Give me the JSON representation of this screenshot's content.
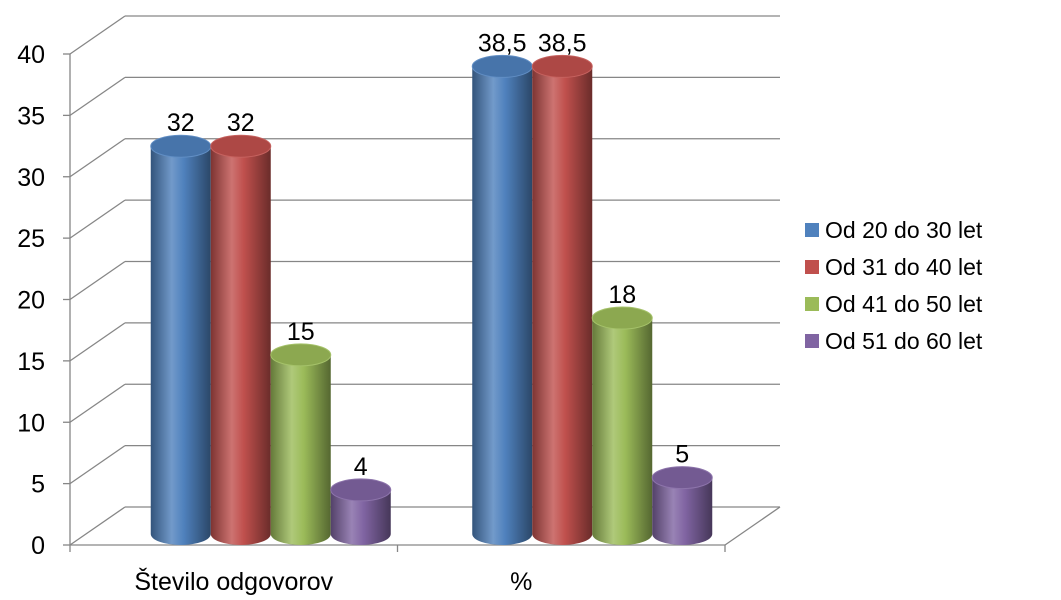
{
  "chart_data": {
    "type": "bar",
    "categories": [
      "Število odgovorov",
      "%"
    ],
    "series": [
      {
        "name": "Od 20 do 30 let",
        "values": [
          32,
          38.5
        ],
        "labels": [
          "32",
          "38,5"
        ],
        "color": "#4F81BD"
      },
      {
        "name": "Od 31 do 40 let",
        "values": [
          32,
          38.5
        ],
        "labels": [
          "32",
          "38,5"
        ],
        "color": "#C0504D"
      },
      {
        "name": "Od 41 do 50 let",
        "values": [
          15,
          18
        ],
        "labels": [
          "15",
          "18"
        ],
        "color": "#9BBB59"
      },
      {
        "name": "Od 51 do 60 let",
        "values": [
          4,
          5
        ],
        "labels": [
          "4",
          "5"
        ],
        "color": "#8064A2"
      }
    ],
    "y_ticks": [
      "0",
      "5",
      "10",
      "15",
      "20",
      "25",
      "30",
      "35",
      "40"
    ],
    "ylim": [
      0,
      40
    ],
    "grid": true,
    "legend": "right",
    "bar_shape": "3d-cylinder"
  }
}
